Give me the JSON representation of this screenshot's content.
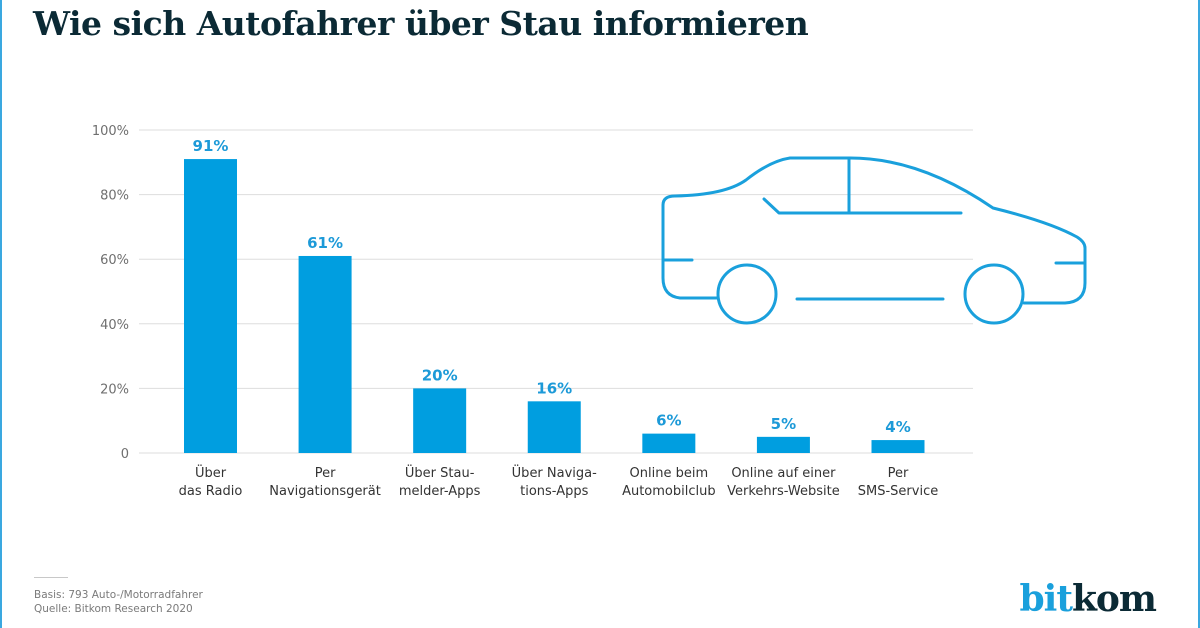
{
  "title": "Wie sich Autofahrer über Stau informieren",
  "colors": {
    "bar": "#009ee0",
    "label": "#1d9ad8",
    "title": "#0b2a35",
    "grid": "#dddddd",
    "icon": "#1aa0dc"
  },
  "chart_data": {
    "type": "bar",
    "title": "Wie sich Autofahrer über Stau informieren",
    "xlabel": "",
    "ylabel": "",
    "ylim": [
      0,
      100
    ],
    "yticks": [
      0,
      20,
      40,
      60,
      80,
      100
    ],
    "ytick_labels": [
      "0",
      "20%",
      "40%",
      "60%",
      "80%",
      "100%"
    ],
    "grid": true,
    "categories": [
      [
        "Über",
        "das Radio"
      ],
      [
        "Per",
        "Navigationsgerät"
      ],
      [
        "Über Stau-",
        "melder-Apps"
      ],
      [
        "Über Naviga-",
        "tions-Apps"
      ],
      [
        "Online beim",
        "Automobilclub"
      ],
      [
        "Online auf einer",
        "Verkehrs-Website"
      ],
      [
        "Per",
        "SMS-Service"
      ]
    ],
    "values": [
      91,
      61,
      20,
      16,
      6,
      5,
      4
    ],
    "value_labels": [
      "91%",
      "61%",
      "20%",
      "16%",
      "6%",
      "5%",
      "4%"
    ]
  },
  "illustration": {
    "icon": "car-icon"
  },
  "footer": {
    "basis": "Basis: 793 Auto-/Motorradfahrer",
    "source": "Quelle: Bitkom Research 2020"
  },
  "logo": {
    "part1": "bit",
    "part2": "kom"
  }
}
